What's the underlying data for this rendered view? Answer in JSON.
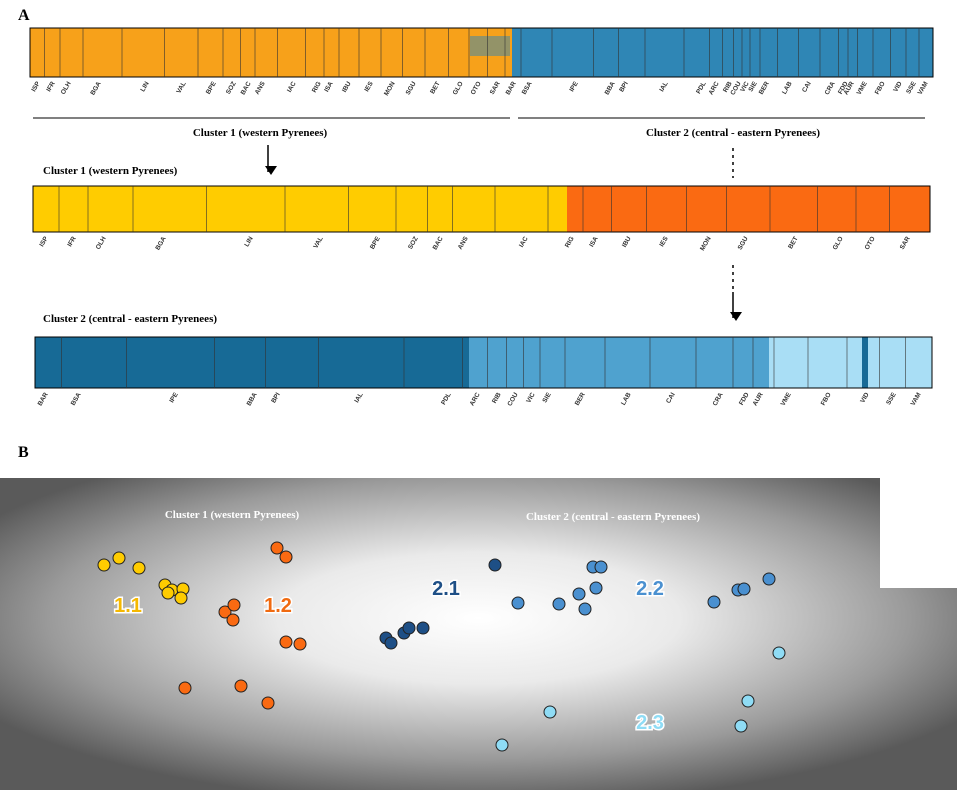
{
  "panel_a": {
    "label": "A",
    "plot_all": {
      "populations": [
        "ISP",
        "IFR",
        "OLH",
        "BGA",
        "LIN",
        "VAL",
        "BPE",
        "SOZ",
        "BAC",
        "ANS",
        "IAC",
        "RIG",
        "ISA",
        "IBU",
        "IES",
        "MON",
        "SGU",
        "BET",
        "GLO",
        "OTO",
        "SAR",
        "BAR",
        "BSA",
        "IPE",
        "BBA",
        "BPI",
        "IAL",
        "PDL",
        "ARC",
        "RIB",
        "COU",
        "VIC",
        "SIE",
        "BER",
        "LAB",
        "CAI",
        "CRA",
        "FDD",
        "AUR",
        "VME",
        "FBO",
        "VID",
        "SSE",
        "VAM"
      ]
    },
    "divider_labels": [
      "Cluster 1 (western Pyrenees)",
      "Cluster 2 (central - eastern Pyrenees)"
    ],
    "plot_cluster1": {
      "title": "Cluster 1 (western Pyrenees)",
      "populations": [
        "ISP",
        "IFR",
        "OLH",
        "BGA",
        "LIN",
        "VAL",
        "BPE",
        "SOZ",
        "BAC",
        "ANS",
        "IAC",
        "RIG",
        "ISA",
        "IBU",
        "IES",
        "MON",
        "SGU",
        "BET",
        "GLO",
        "OTO",
        "SAR"
      ]
    },
    "plot_cluster2": {
      "title": "Cluster 2 (central - eastern Pyrenees)",
      "populations": [
        "BAR",
        "BSA",
        "IPE",
        "BBA",
        "BPI",
        "IAL",
        "PDL",
        "ARC",
        "RIB",
        "COU",
        "VIC",
        "SIE",
        "BER",
        "LAB",
        "CAI",
        "CRA",
        "FDD",
        "AUR",
        "VME",
        "FBO",
        "VID",
        "SSE",
        "VAM"
      ]
    }
  },
  "panel_b": {
    "label": "B",
    "cluster_titles": [
      "Cluster 1 (western Pyrenees)",
      "Cluster 2 (central - eastern Pyrenees)"
    ],
    "group_labels": [
      "1.1",
      "1.2",
      "2.1",
      "2.2",
      "2.3"
    ]
  }
}
